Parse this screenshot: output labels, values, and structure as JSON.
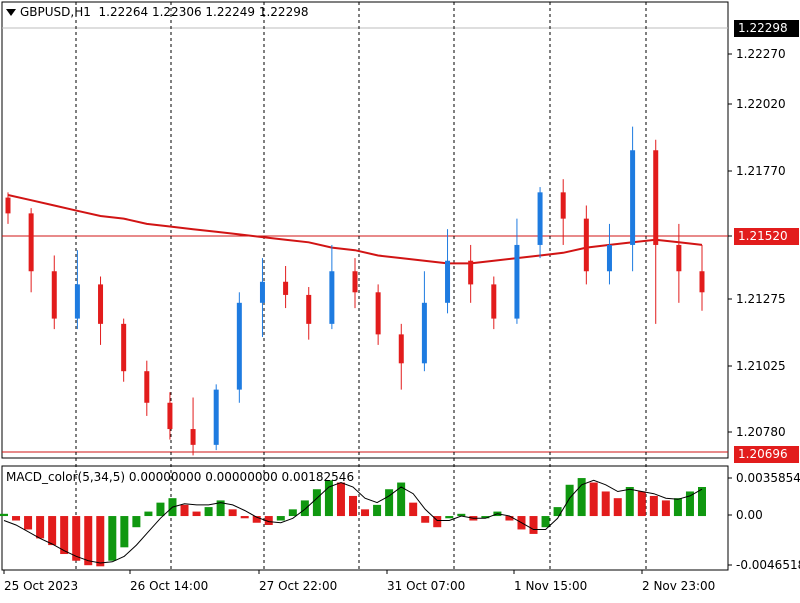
{
  "header": {
    "symbol": "GBPUSD,H1",
    "ohlc": "1.22264 1.22306 1.22249 1.22298"
  },
  "indicator": {
    "label": "MACD_color(5,34,5) 0.00000000 0.00000000 0.00182546"
  },
  "price_tags": {
    "current": "1.22298",
    "ma": "1.21520",
    "low": "1.20696"
  },
  "colors": {
    "up": "#1e7be0",
    "down": "#e21c1c",
    "ma": "#d11414",
    "hist_up": "#109810",
    "hist_down": "#e21c1c",
    "signal": "#000000",
    "vline": "#000000",
    "tag_dark": "#000000"
  },
  "chart_data": [
    {
      "type": "candlestick",
      "title": "GBPUSD,H1",
      "ylim": [
        1.2069,
        1.2234
      ],
      "price_ticks": [
        "1.22270",
        "1.22020",
        "1.21770",
        "1.21520",
        "1.21275",
        "1.21025",
        "1.20780"
      ],
      "time_labels": [
        "25 Oct 2023",
        "26 Oct 14:00",
        "27 Oct 22:00",
        "31 Oct 07:00",
        "1 Nov 15:00",
        "2 Nov 23:00"
      ],
      "ma_series_name": "",
      "ma_values": [
        1.2169,
        1.2167,
        1.2165,
        1.2163,
        1.2161,
        1.216,
        1.2158,
        1.2157,
        1.2156,
        1.2155,
        1.2154,
        1.2153,
        1.2152,
        1.2151,
        1.2149,
        1.2148,
        1.2146,
        1.2145,
        1.2144,
        1.2143,
        1.2143,
        1.2144,
        1.2145,
        1.2146,
        1.2147,
        1.2149,
        1.215,
        1.2151,
        1.2152,
        1.2151,
        1.215
      ],
      "candles": [
        {
          "o": 1.2168,
          "c": 1.2162,
          "h": 1.217,
          "l": 1.2158
        },
        {
          "o": 1.2162,
          "c": 1.214,
          "h": 1.2164,
          "l": 1.2132
        },
        {
          "o": 1.214,
          "c": 1.2122,
          "h": 1.2146,
          "l": 1.2118
        },
        {
          "o": 1.2122,
          "c": 1.2135,
          "h": 1.2148,
          "l": 1.2118
        },
        {
          "o": 1.2135,
          "c": 1.212,
          "h": 1.2138,
          "l": 1.2112
        },
        {
          "o": 1.212,
          "c": 1.2102,
          "h": 1.2122,
          "l": 1.2098
        },
        {
          "o": 1.2102,
          "c": 1.209,
          "h": 1.2106,
          "l": 1.2085
        },
        {
          "o": 1.209,
          "c": 1.208,
          "h": 1.2094,
          "l": 1.2076
        },
        {
          "o": 1.208,
          "c": 1.2074,
          "h": 1.2092,
          "l": 1.207
        },
        {
          "o": 1.2074,
          "c": 1.2095,
          "h": 1.2097,
          "l": 1.2072
        },
        {
          "o": 1.2095,
          "c": 1.2128,
          "h": 1.2132,
          "l": 1.209
        },
        {
          "o": 1.2128,
          "c": 1.2136,
          "h": 1.2145,
          "l": 1.2115
        },
        {
          "o": 1.2136,
          "c": 1.2131,
          "h": 1.2142,
          "l": 1.2126
        },
        {
          "o": 1.2131,
          "c": 1.212,
          "h": 1.2134,
          "l": 1.2114
        },
        {
          "o": 1.212,
          "c": 1.214,
          "h": 1.215,
          "l": 1.2118
        },
        {
          "o": 1.214,
          "c": 1.2132,
          "h": 1.2145,
          "l": 1.2126
        },
        {
          "o": 1.2132,
          "c": 1.2116,
          "h": 1.2135,
          "l": 1.2112
        },
        {
          "o": 1.2116,
          "c": 1.2105,
          "h": 1.212,
          "l": 1.2095
        },
        {
          "o": 1.2105,
          "c": 1.2128,
          "h": 1.214,
          "l": 1.2102
        },
        {
          "o": 1.2128,
          "c": 1.2144,
          "h": 1.2156,
          "l": 1.2124
        },
        {
          "o": 1.2144,
          "c": 1.2135,
          "h": 1.215,
          "l": 1.2128
        },
        {
          "o": 1.2135,
          "c": 1.2122,
          "h": 1.2138,
          "l": 1.2118
        },
        {
          "o": 1.2122,
          "c": 1.215,
          "h": 1.216,
          "l": 1.212
        },
        {
          "o": 1.215,
          "c": 1.217,
          "h": 1.2172,
          "l": 1.2145
        },
        {
          "o": 1.217,
          "c": 1.216,
          "h": 1.2175,
          "l": 1.215
        },
        {
          "o": 1.216,
          "c": 1.214,
          "h": 1.2165,
          "l": 1.2135
        },
        {
          "o": 1.214,
          "c": 1.215,
          "h": 1.2158,
          "l": 1.2135
        },
        {
          "o": 1.215,
          "c": 1.2186,
          "h": 1.2195,
          "l": 1.214
        },
        {
          "o": 1.2186,
          "c": 1.215,
          "h": 1.219,
          "l": 1.212
        },
        {
          "o": 1.215,
          "c": 1.214,
          "h": 1.2158,
          "l": 1.2128
        },
        {
          "o": 1.214,
          "c": 1.2132,
          "h": 1.215,
          "l": 1.2125
        }
      ]
    },
    {
      "type": "bar",
      "series_name": "MACD_color(5,34,5)",
      "ylim": [
        -0.004651,
        0.003585
      ],
      "tick_labels": [
        "0.0035854",
        "0.00",
        "-0.0046518"
      ],
      "hist_values": [
        0.0002,
        -0.0004,
        -0.0012,
        -0.002,
        -0.0026,
        -0.0034,
        -0.004,
        -0.0044,
        -0.0045,
        -0.004,
        -0.0028,
        -0.001,
        0.0004,
        0.0012,
        0.0016,
        0.001,
        0.0004,
        0.0008,
        0.0014,
        0.0006,
        -0.0002,
        -0.0006,
        -0.0008,
        -0.0004,
        0.0006,
        0.0014,
        0.0024,
        0.0032,
        0.003,
        0.0018,
        0.0006,
        0.001,
        0.0024,
        0.003,
        0.0012,
        -0.0006,
        -0.001,
        -0.0002,
        0.0002,
        -0.0004,
        -0.0002,
        0.0004,
        -0.0004,
        -0.0012,
        -0.0016,
        -0.001,
        0.0008,
        0.0028,
        0.0034,
        0.003,
        0.0022,
        0.0016,
        0.0026,
        0.0022,
        0.0018,
        0.0014,
        0.0016,
        0.0022,
        0.0026
      ],
      "signal_values": [
        -0.0004,
        -0.0008,
        -0.0014,
        -0.002,
        -0.0025,
        -0.0031,
        -0.0036,
        -0.004,
        -0.0042,
        -0.0041,
        -0.0036,
        -0.0026,
        -0.0014,
        -0.0002,
        0.0008,
        0.0011,
        0.001,
        0.001,
        0.0012,
        0.001,
        0.0005,
        -0.0001,
        -0.0005,
        -0.0006,
        -0.0002,
        0.0006,
        0.0016,
        0.0026,
        0.003,
        0.0026,
        0.0016,
        0.0012,
        0.0018,
        0.0026,
        0.002,
        0.0006,
        -0.0004,
        -0.0004,
        0.0,
        -0.0002,
        -0.0002,
        0.0002,
        0.0,
        -0.0006,
        -0.0012,
        -0.0012,
        -0.0002,
        0.0016,
        0.0028,
        0.0032,
        0.0028,
        0.0022,
        0.0024,
        0.0022,
        0.002,
        0.0016,
        0.0015,
        0.0018,
        0.0024
      ]
    }
  ]
}
